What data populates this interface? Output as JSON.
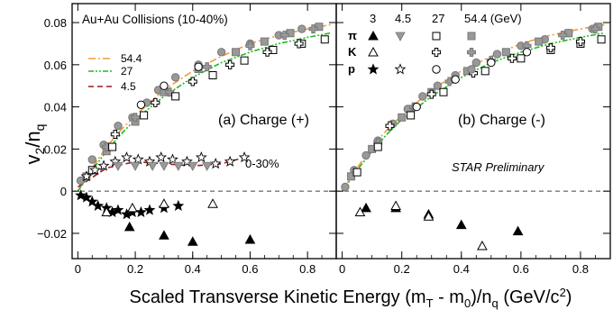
{
  "y_label_main": "v",
  "y_label_sub": "2",
  "y_label_denom": "/n",
  "y_label_denom_sub": "q",
  "x_label": {
    "pre": "Scaled Transverse Kinetic Energy (m",
    "sub_t": "T",
    "mid": " - m",
    "sub_0": "0",
    "post1": ")/n",
    "sub_q": "q",
    "post2": " (GeV/c",
    "sup_2": "2",
    "post3": ")"
  },
  "chart_data": [
    {
      "type": "scatter",
      "panel": "left",
      "header_text": "Au+Au Collisions (10-40%)",
      "panel_label": "(a) Charge (+)",
      "annotation": "0-30%",
      "xlim": [
        -0.02,
        0.9
      ],
      "ylim": [
        -0.032,
        0.089
      ],
      "x_ticks": [
        0,
        0.2,
        0.4,
        0.6,
        0.8
      ],
      "x_tick_labels": [
        "0",
        "0.2",
        "0.4",
        "0.6",
        "0.8"
      ],
      "y_ticks": [
        -0.02,
        0,
        0.02,
        0.04,
        0.06,
        0.08
      ],
      "y_tick_labels": [
        "−0.02",
        "0",
        "0.02",
        "0.04",
        "0.06",
        "0.08"
      ],
      "legend_position": "top-left",
      "fit_legend": [
        {
          "name": "54.4",
          "color": "#f39b3a",
          "dash": "8,3,2,3"
        },
        {
          "name": "27",
          "color": "#22bb22",
          "dash": "6,2,2,2,2,2"
        },
        {
          "name": "4.5",
          "color": "#a01a1a",
          "dash": "6,4"
        }
      ],
      "fits": [
        {
          "name": "54.4",
          "x": [
            0.0,
            0.05,
            0.1,
            0.15,
            0.2,
            0.3,
            0.4,
            0.5,
            0.6,
            0.7,
            0.8,
            0.88
          ],
          "y": [
            0.0,
            0.011,
            0.021,
            0.029,
            0.036,
            0.048,
            0.057,
            0.064,
            0.07,
            0.074,
            0.077,
            0.079
          ]
        },
        {
          "name": "27",
          "x": [
            0.0,
            0.05,
            0.1,
            0.15,
            0.2,
            0.3,
            0.4,
            0.5,
            0.6,
            0.7,
            0.8,
            0.88
          ],
          "y": [
            0.0,
            0.01,
            0.019,
            0.027,
            0.034,
            0.045,
            0.054,
            0.061,
            0.066,
            0.07,
            0.073,
            0.075
          ]
        },
        {
          "name": "4.5",
          "x": [
            0.0,
            0.1,
            0.2,
            0.3,
            0.4,
            0.5,
            0.58
          ],
          "y": [
            0.002,
            0.011,
            0.014,
            0.013,
            0.012,
            0.013,
            0.016
          ]
        }
      ],
      "series": [
        {
          "name": "p 54.4",
          "marker": "circle",
          "fill": "#999999",
          "x": [
            0.01,
            0.05,
            0.09,
            0.14,
            0.19,
            0.24,
            0.28,
            0.34,
            0.42,
            0.5,
            0.6,
            0.7,
            0.78
          ],
          "y": [
            0.005,
            0.015,
            0.022,
            0.031,
            0.035,
            0.042,
            0.048,
            0.054,
            0.06,
            0.066,
            0.07,
            0.074,
            0.077
          ]
        },
        {
          "name": "π 54.4",
          "marker": "square",
          "fill": "#999999",
          "x": [
            0.03,
            0.1,
            0.2,
            0.3,
            0.42,
            0.55,
            0.65,
            0.74,
            0.84
          ],
          "y": [
            0.007,
            0.019,
            0.033,
            0.047,
            0.058,
            0.066,
            0.071,
            0.075,
            0.078
          ]
        },
        {
          "name": "K 54.4",
          "marker": "plus",
          "fill": "#999999",
          "x": [
            0.1,
            0.2,
            0.32,
            0.45,
            0.6,
            0.72,
            0.82
          ],
          "y": [
            0.021,
            0.035,
            0.047,
            0.059,
            0.069,
            0.074,
            0.077
          ]
        },
        {
          "name": "π 27",
          "marker": "square",
          "fill": "none",
          "x": [
            0.05,
            0.12,
            0.23,
            0.34,
            0.47,
            0.58,
            0.68,
            0.78,
            0.86
          ],
          "y": [
            0.01,
            0.021,
            0.036,
            0.045,
            0.055,
            0.062,
            0.067,
            0.07,
            0.072
          ]
        },
        {
          "name": "K 27",
          "marker": "plus",
          "fill": "none",
          "x": [
            0.13,
            0.27,
            0.4,
            0.53,
            0.66,
            0.77
          ],
          "y": [
            0.027,
            0.042,
            0.052,
            0.06,
            0.066,
            0.07
          ]
        },
        {
          "name": "p 27",
          "marker": "circle",
          "fill": "none",
          "x": [
            0.22,
            0.3,
            0.42
          ],
          "y": [
            0.041,
            0.05,
            0.059
          ]
        },
        {
          "name": "p 4.5",
          "marker": "star",
          "fill": "none",
          "x": [
            0.03,
            0.06,
            0.09,
            0.13,
            0.17,
            0.21,
            0.25,
            0.29,
            0.33,
            0.38,
            0.43,
            0.48,
            0.53,
            0.58
          ],
          "y": [
            0.007,
            0.01,
            0.012,
            0.014,
            0.016,
            0.015,
            0.014,
            0.016,
            0.015,
            0.014,
            0.016,
            0.013,
            0.014,
            0.016
          ]
        },
        {
          "name": "K 4.5",
          "marker": "triangle-down",
          "fill": "#999999",
          "x": [
            0.14,
            0.2,
            0.26,
            0.3,
            0.35,
            0.4,
            0.45
          ],
          "y": [
            0.012,
            0.012,
            0.012,
            0.012,
            0.012,
            0.012,
            0.012
          ]
        },
        {
          "name": "p 3",
          "marker": "star",
          "fill": "#000000",
          "x": [
            0.01,
            0.03,
            0.05,
            0.07,
            0.1,
            0.12,
            0.14,
            0.17,
            0.19,
            0.22,
            0.25,
            0.3,
            0.35
          ],
          "y": [
            -0.002,
            -0.003,
            -0.005,
            -0.007,
            -0.008,
            -0.01,
            -0.009,
            -0.011,
            -0.01,
            -0.01,
            -0.009,
            -0.008,
            -0.007
          ]
        },
        {
          "name": "π 3",
          "marker": "triangle-up",
          "fill": "#000000",
          "x": [
            0.18,
            0.3,
            0.4,
            0.6
          ],
          "y": [
            -0.017,
            -0.021,
            -0.024,
            -0.023
          ]
        },
        {
          "name": "K 3",
          "marker": "triangle-up",
          "fill": "#ffffff",
          "x": [
            0.1,
            0.19,
            0.3,
            0.47
          ],
          "y": [
            -0.01,
            -0.008,
            -0.006,
            -0.006
          ]
        }
      ]
    },
    {
      "type": "scatter",
      "panel": "right",
      "panel_label": "(b) Charge (-)",
      "annotation": "STAR Preliminary",
      "xlim": [
        -0.02,
        0.9
      ],
      "ylim": [
        -0.032,
        0.089
      ],
      "x_ticks": [
        0,
        0.2,
        0.4,
        0.6,
        0.8
      ],
      "x_tick_labels": [
        "0",
        "0.2",
        "0.4",
        "0.6",
        "0.8"
      ],
      "legend_position": "top-left",
      "energy_headers": [
        "3",
        "4.5",
        "27",
        "54.4 (GeV)"
      ],
      "species_labels": [
        "π",
        "K",
        "p"
      ],
      "fits": [
        {
          "name": "54.4",
          "x": [
            0.0,
            0.05,
            0.1,
            0.15,
            0.2,
            0.3,
            0.4,
            0.5,
            0.6,
            0.7,
            0.8,
            0.88
          ],
          "y": [
            0.0,
            0.011,
            0.021,
            0.029,
            0.036,
            0.048,
            0.057,
            0.064,
            0.07,
            0.074,
            0.077,
            0.079
          ]
        },
        {
          "name": "27",
          "x": [
            0.0,
            0.05,
            0.1,
            0.15,
            0.2,
            0.3,
            0.4,
            0.5,
            0.6,
            0.7,
            0.8,
            0.88
          ],
          "y": [
            0.0,
            0.01,
            0.019,
            0.027,
            0.034,
            0.045,
            0.054,
            0.061,
            0.066,
            0.07,
            0.073,
            0.075
          ]
        }
      ],
      "series": [
        {
          "name": "p 54.4",
          "marker": "circle",
          "fill": "#999999",
          "x": [
            0.01,
            0.04,
            0.08,
            0.12,
            0.17,
            0.22,
            0.27,
            0.32,
            0.38,
            0.45,
            0.52,
            0.6,
            0.68,
            0.76,
            0.84
          ],
          "y": [
            0.002,
            0.01,
            0.017,
            0.024,
            0.032,
            0.039,
            0.045,
            0.05,
            0.055,
            0.061,
            0.065,
            0.069,
            0.072,
            0.075,
            0.077
          ]
        },
        {
          "name": "π 54.4",
          "marker": "square",
          "fill": "#999999",
          "x": [
            0.03,
            0.1,
            0.2,
            0.3,
            0.42,
            0.55,
            0.66,
            0.76,
            0.86
          ],
          "y": [
            0.007,
            0.02,
            0.035,
            0.047,
            0.057,
            0.066,
            0.071,
            0.075,
            0.078
          ]
        },
        {
          "name": "K 54.4",
          "marker": "plus",
          "fill": "#999999",
          "x": [
            0.12,
            0.24,
            0.36,
            0.5,
            0.62,
            0.74,
            0.85
          ],
          "y": [
            0.023,
            0.04,
            0.052,
            0.062,
            0.069,
            0.074,
            0.077
          ]
        },
        {
          "name": "π 27",
          "marker": "square",
          "fill": "none",
          "x": [
            0.05,
            0.12,
            0.23,
            0.34,
            0.48,
            0.6,
            0.7,
            0.8,
            0.87
          ],
          "y": [
            0.009,
            0.021,
            0.036,
            0.047,
            0.057,
            0.063,
            0.067,
            0.07,
            0.072
          ]
        },
        {
          "name": "K 27",
          "marker": "plus",
          "fill": "none",
          "x": [
            0.16,
            0.3,
            0.44,
            0.57,
            0.7,
            0.8
          ],
          "y": [
            0.031,
            0.046,
            0.056,
            0.063,
            0.068,
            0.071
          ]
        },
        {
          "name": "p 27",
          "marker": "circle",
          "fill": "none",
          "x": [
            0.25,
            0.38,
            0.5,
            0.62
          ],
          "y": [
            0.04,
            0.053,
            0.061,
            0.066
          ]
        },
        {
          "name": "π 3",
          "marker": "triangle-up",
          "fill": "#000000",
          "x": [
            0.08,
            0.18,
            0.29,
            0.4,
            0.59
          ],
          "y": [
            -0.008,
            -0.008,
            -0.011,
            -0.016,
            -0.019
          ]
        },
        {
          "name": "K 3",
          "marker": "triangle-up",
          "fill": "#ffffff",
          "x": [
            0.06,
            0.18,
            0.29,
            0.47
          ],
          "y": [
            -0.01,
            -0.007,
            -0.012,
            -0.026
          ]
        }
      ]
    }
  ]
}
